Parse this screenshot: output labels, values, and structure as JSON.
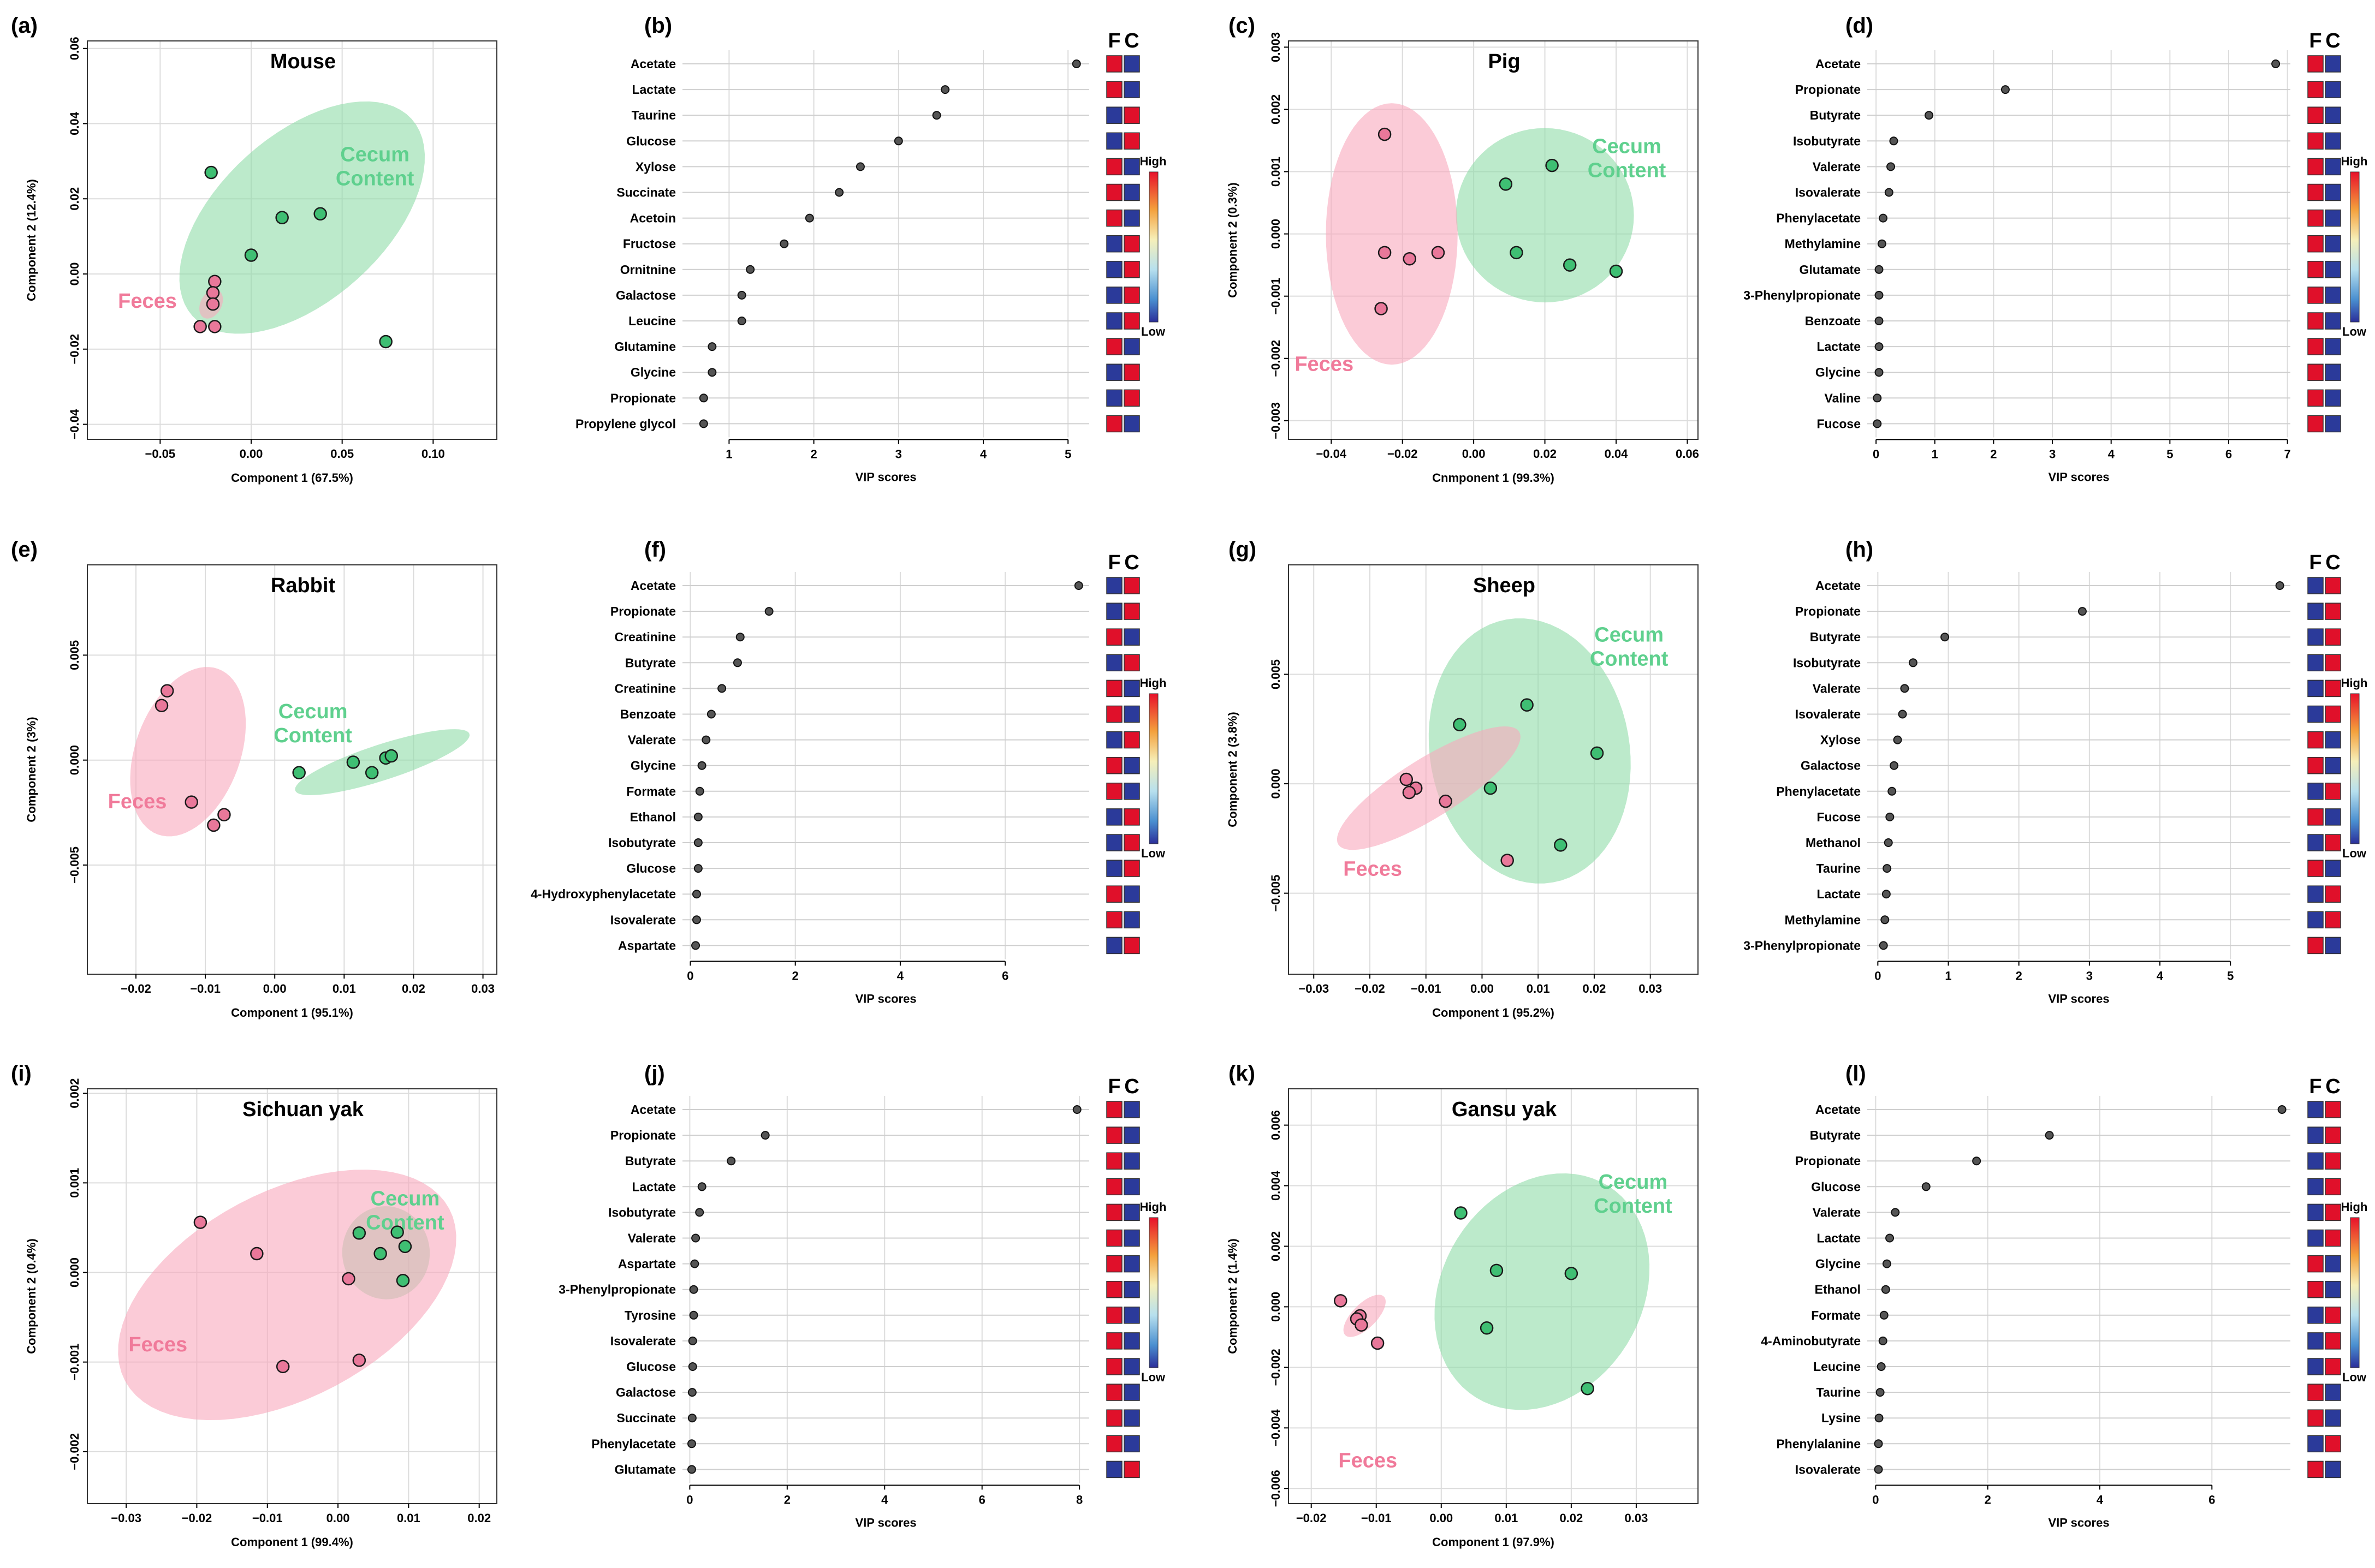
{
  "colors": {
    "cecum_fill": "#8fdca8",
    "feces_fill": "#f9a8bd",
    "cecum_point": "#3fbf73",
    "feces_point": "#e9789a",
    "high": "#e0102a",
    "low": "#2b3a9a",
    "grid": "#dcdcdc"
  },
  "chart_data": [
    {
      "panel": "(a)",
      "type": "scatter",
      "title": "Mouse",
      "xlabel": "Component 1 (67.5%)",
      "ylabel": "Component 2 (12.4%)",
      "xlim": [
        -0.09,
        0.135
      ],
      "ylim": [
        -0.044,
        0.062
      ],
      "xticks": [
        -0.05,
        0.0,
        0.05,
        0.1
      ],
      "xticklabels": [
        "−0.05",
        "0.00",
        "0.05",
        "0.10"
      ],
      "yticks": [
        -0.04,
        -0.02,
        0.0,
        0.02,
        0.04,
        0.06
      ],
      "yticklabels": [
        "−0.04",
        "−0.02",
        "0.00",
        "0.02",
        "0.04",
        "0.06"
      ],
      "cecum_label": [
        "Cecum",
        "Content"
      ],
      "feces_label": "Feces",
      "cecum_label_at": [
        0.068,
        0.03
      ],
      "feces_label_at": [
        -0.057,
        -0.009
      ],
      "ellipses": {
        "cecum": {
          "cx": 0.028,
          "cy": 0.015,
          "rx": 0.081,
          "ry": 0.022,
          "angle": -42
        },
        "feces": {
          "cx": -0.022,
          "cy": -0.008,
          "rx": 0.0085,
          "ry": 0.0028,
          "angle": -62
        }
      },
      "cecum_points": [
        [
          -0.022,
          0.027
        ],
        [
          0.0,
          0.005
        ],
        [
          0.017,
          0.015
        ],
        [
          0.038,
          0.016
        ],
        [
          0.074,
          -0.018
        ]
      ],
      "feces_points": [
        [
          -0.02,
          -0.002
        ],
        [
          -0.021,
          -0.005
        ],
        [
          -0.021,
          -0.008
        ],
        [
          -0.028,
          -0.014
        ],
        [
          -0.02,
          -0.014
        ]
      ]
    },
    {
      "panel": "(b)",
      "type": "dot",
      "xlabel": "VIP scores",
      "xlim": [
        0.45,
        5.25
      ],
      "xticks": [
        1,
        2,
        3,
        4,
        5
      ],
      "xticklabels": [
        "1",
        "2",
        "3",
        "4",
        "5"
      ],
      "categories": [
        "Acetate",
        "Lactate",
        "Taurine",
        "Glucose",
        "Xylose",
        "Succinate",
        "Acetoin",
        "Fructose",
        "Ornitnine",
        "Galactose",
        "Leucine",
        "Glutamine",
        "Glycine",
        "Propionate",
        "Propylene glycol"
      ],
      "values": [
        5.1,
        3.55,
        3.45,
        3.0,
        2.55,
        2.3,
        1.95,
        1.65,
        1.25,
        1.15,
        1.15,
        0.8,
        0.8,
        0.7,
        0.7
      ],
      "fc": [
        "HL",
        "HL",
        "LH",
        "LH",
        "HL",
        "HL",
        "HL",
        "LH",
        "LH",
        "LH",
        "LH",
        "HL",
        "LH",
        "LH",
        "HL"
      ],
      "legend": {
        "high": "High",
        "low": "Low",
        "header": [
          "F",
          "C"
        ]
      }
    },
    {
      "panel": "(c)",
      "type": "scatter",
      "title": "Pig",
      "xlabel": "Cnmponent 1 (99.3%)",
      "ylabel": "Component 2 (0.3%)",
      "xlim": [
        -0.052,
        0.063
      ],
      "ylim": [
        -0.0033,
        0.0031
      ],
      "xticks": [
        -0.04,
        -0.02,
        0.0,
        0.02,
        0.04,
        0.06
      ],
      "xticklabels": [
        "−0.04",
        "−0.02",
        "0.00",
        "0.02",
        "0.04",
        "0.06"
      ],
      "yticks": [
        -0.003,
        -0.002,
        -0.001,
        0.0,
        0.001,
        0.002,
        0.003
      ],
      "yticklabels": [
        "−0.003",
        "−0.002",
        "−0.001",
        "0.000",
        "0.001",
        "0.002",
        "0.003"
      ],
      "cecum_label": [
        "Cecum",
        "Content"
      ],
      "feces_label": "Feces",
      "cecum_label_at": [
        0.043,
        0.0013
      ],
      "feces_label_at": [
        -0.042,
        -0.0022
      ],
      "ellipses": {
        "cecum": {
          "cx": 0.02,
          "cy": 0.0003,
          "rx": 0.025,
          "ry": 0.0014,
          "angle": 5
        },
        "feces": {
          "cx": -0.023,
          "cy": 0.0,
          "rx": 0.0185,
          "ry": 0.0021,
          "angle": 0
        }
      },
      "cecum_points": [
        [
          0.009,
          0.0008
        ],
        [
          0.022,
          0.0011
        ],
        [
          0.012,
          -0.0003
        ],
        [
          0.027,
          -0.0005
        ],
        [
          0.04,
          -0.0006
        ]
      ],
      "feces_points": [
        [
          -0.025,
          0.0016
        ],
        [
          -0.025,
          -0.0003
        ],
        [
          -0.018,
          -0.0004
        ],
        [
          -0.01,
          -0.0003
        ],
        [
          -0.026,
          -0.0012
        ]
      ]
    },
    {
      "panel": "(d)",
      "type": "dot",
      "xlabel": "VIP scores",
      "xlim": [
        -0.15,
        7.05
      ],
      "xticks": [
        0,
        1,
        2,
        3,
        4,
        5,
        6,
        7
      ],
      "xticklabels": [
        "0",
        "1",
        "2",
        "3",
        "4",
        "5",
        "6",
        "7"
      ],
      "categories": [
        "Acetate",
        "Propionate",
        "Butyrate",
        "Isobutyrate",
        "Valerate",
        "Isovalerate",
        "Phenylacetate",
        "Methylamine",
        "Glutamate",
        "3-Phenylpropionate",
        "Benzoate",
        "Lactate",
        "Glycine",
        "Valine",
        "Fucose"
      ],
      "values": [
        6.8,
        2.2,
        0.9,
        0.3,
        0.25,
        0.22,
        0.12,
        0.1,
        0.05,
        0.05,
        0.05,
        0.05,
        0.05,
        0.02,
        0.02
      ],
      "fc": [
        "HL",
        "HL",
        "HL",
        "HL",
        "HL",
        "HL",
        "HL",
        "HL",
        "HL",
        "HL",
        "HL",
        "HL",
        "HL",
        "HL",
        "HL"
      ],
      "legend": {
        "high": "High",
        "low": "Low",
        "header": [
          "F",
          "C"
        ]
      }
    },
    {
      "panel": "(e)",
      "type": "scatter",
      "title": "Rabbit",
      "xlabel": "Component 1 (95.1%)",
      "ylabel": "Component 2 (3%)",
      "xlim": [
        -0.027,
        0.032
      ],
      "ylim": [
        -0.0102,
        0.0093
      ],
      "xticks": [
        -0.02,
        -0.01,
        0.0,
        0.01,
        0.02,
        0.03
      ],
      "xticklabels": [
        "−0.02",
        "−0.01",
        "0.00",
        "0.01",
        "0.02",
        "0.03"
      ],
      "yticks": [
        -0.005,
        0.0,
        0.005
      ],
      "yticklabels": [
        "−0.005",
        "0.000",
        "0.005"
      ],
      "cecum_label": [
        "Cecum",
        "Content"
      ],
      "feces_label": "Feces",
      "cecum_label_at": [
        0.0055,
        0.002
      ],
      "feces_label_at": [
        -0.0198,
        -0.0023
      ],
      "ellipses": {
        "cecum": {
          "cx": 0.0155,
          "cy": -0.0001,
          "rx": 0.0132,
          "ry": 0.00085,
          "angle": -18
        },
        "feces": {
          "cx": -0.0125,
          "cy": 0.0004,
          "rx": 0.0127,
          "ry": 0.0025,
          "angle": -70
        }
      },
      "cecum_points": [
        [
          0.0035,
          -0.0006
        ],
        [
          0.0113,
          -0.0001
        ],
        [
          0.014,
          -0.0006
        ],
        [
          0.016,
          0.0001
        ],
        [
          0.0168,
          0.0002
        ]
      ],
      "feces_points": [
        [
          -0.0155,
          0.0033
        ],
        [
          -0.0163,
          0.0026
        ],
        [
          -0.012,
          -0.002
        ],
        [
          -0.0073,
          -0.0026
        ],
        [
          -0.0088,
          -0.0031
        ]
      ]
    },
    {
      "panel": "(f)",
      "type": "dot",
      "xlabel": "VIP scores",
      "xlim": [
        -0.15,
        7.6
      ],
      "xticks": [
        0,
        2,
        4,
        6
      ],
      "xticklabels": [
        "0",
        "2",
        "4",
        "6"
      ],
      "categories": [
        "Acetate",
        "Propionate",
        "Creatinine",
        "Butyrate",
        "Creatinine",
        "Benzoate",
        "Valerate",
        "Glycine",
        "Formate",
        "Ethanol",
        "Isobutyrate",
        "Glucose",
        "4-Hydroxyphenylacetate",
        "Isovalerate",
        "Aspartate"
      ],
      "values": [
        7.4,
        1.5,
        0.95,
        0.9,
        0.6,
        0.4,
        0.3,
        0.22,
        0.18,
        0.15,
        0.15,
        0.15,
        0.12,
        0.12,
        0.1
      ],
      "fc": [
        "LH",
        "LH",
        "HL",
        "LH",
        "HL",
        "HL",
        "LH",
        "HL",
        "HL",
        "LH",
        "LH",
        "LH",
        "HL",
        "HL",
        "LH"
      ],
      "legend": {
        "high": "High",
        "low": "Low",
        "header": [
          "F",
          "C"
        ]
      }
    },
    {
      "panel": "(g)",
      "type": "scatter",
      "title": "Sheep",
      "xlabel": "Component 1 (95.2%)",
      "ylabel": "Component 2 (3.8%)",
      "xlim": [
        -0.0345,
        0.0385
      ],
      "ylim": [
        -0.0087,
        0.01
      ],
      "xticks": [
        -0.03,
        -0.02,
        -0.01,
        0.0,
        0.01,
        0.02,
        0.03
      ],
      "xticklabels": [
        "−0.03",
        "−0.02",
        "−0.01",
        "0.00",
        "0.01",
        "0.02",
        "0.03"
      ],
      "yticks": [
        -0.005,
        0.0,
        0.005
      ],
      "yticklabels": [
        "−0.005",
        "0.000",
        "0.005"
      ],
      "cecum_label": [
        "Cecum",
        "Content"
      ],
      "feces_label": "Feces",
      "cecum_label_at": [
        0.0262,
        0.0065
      ],
      "feces_label_at": [
        -0.0195,
        -0.0042
      ],
      "ellipses": {
        "cecum": {
          "cx": 0.0085,
          "cy": 0.0015,
          "rx": 0.0178,
          "ry": 0.0061,
          "angle": -10
        },
        "feces": {
          "cx": -0.0095,
          "cy": -0.0002,
          "rx": 0.019,
          "ry": 0.00135,
          "angle": -32
        }
      },
      "cecum_points": [
        [
          -0.004,
          0.0027
        ],
        [
          0.008,
          0.0036
        ],
        [
          0.0205,
          0.0014
        ],
        [
          0.0015,
          -0.0002
        ],
        [
          0.014,
          -0.0028
        ]
      ],
      "feces_points": [
        [
          -0.0135,
          0.0002
        ],
        [
          -0.0118,
          -0.0002
        ],
        [
          -0.013,
          -0.0004
        ],
        [
          -0.0065,
          -0.0008
        ],
        [
          0.0045,
          -0.0035
        ]
      ]
    },
    {
      "panel": "(h)",
      "type": "dot",
      "xlabel": "VIP scores",
      "xlim": [
        -0.15,
        5.85
      ],
      "xticks": [
        0,
        1,
        2,
        3,
        4,
        5
      ],
      "xticklabels": [
        "0",
        "1",
        "2",
        "3",
        "4",
        "5"
      ],
      "categories": [
        "Acetate",
        "Propionate",
        "Butyrate",
        "Isobutyrate",
        "Valerate",
        "Isovalerate",
        "Xylose",
        "Galactose",
        "Phenylacetate",
        "Fucose",
        "Methanol",
        "Taurine",
        "Lactate",
        "Methylamine",
        "3-Phenylpropionate"
      ],
      "values": [
        5.7,
        2.9,
        0.95,
        0.5,
        0.38,
        0.35,
        0.28,
        0.23,
        0.2,
        0.17,
        0.15,
        0.13,
        0.12,
        0.1,
        0.08
      ],
      "fc": [
        "LH",
        "LH",
        "LH",
        "LH",
        "LH",
        "LH",
        "HL",
        "HL",
        "LH",
        "HL",
        "LH",
        "HL",
        "LH",
        "LH",
        "HL"
      ],
      "legend": {
        "high": "High",
        "low": "Low",
        "header": [
          "F",
          "C"
        ]
      }
    },
    {
      "panel": "(i)",
      "type": "scatter",
      "title": "Sichuan yak",
      "xlabel": "Component 1 (99.4%)",
      "ylabel": "Component 2 (0.4%)",
      "xlim": [
        -0.0355,
        0.0225
      ],
      "ylim": [
        -0.00258,
        0.00205
      ],
      "xticks": [
        -0.03,
        -0.02,
        -0.01,
        0.0,
        0.01,
        0.02
      ],
      "xticklabels": [
        "−0.03",
        "−0.02",
        "−0.01",
        "0.00",
        "0.01",
        "0.02"
      ],
      "yticks": [
        -0.002,
        -0.001,
        0.0,
        0.001,
        0.002
      ],
      "yticklabels": [
        "−0.002",
        "−0.001",
        "0.000",
        "0.001",
        "0.002"
      ],
      "cecum_label": [
        "Cecum",
        "Content"
      ],
      "feces_label": "Feces",
      "cecum_label_at": [
        0.0095,
        0.00075
      ],
      "feces_label_at": [
        -0.0255,
        -0.00088
      ],
      "ellipses": {
        "cecum": {
          "cx": 0.0068,
          "cy": 0.00022,
          "rx": 0.0062,
          "ry": 0.00052,
          "angle": -5
        },
        "feces": {
          "cx": -0.0072,
          "cy": -0.00025,
          "rx": 0.026,
          "ry": 0.00115,
          "angle": -28
        }
      },
      "cecum_points": [
        [
          0.003,
          0.00044
        ],
        [
          0.0084,
          0.00045
        ],
        [
          0.0095,
          0.00029
        ],
        [
          0.006,
          0.00021
        ],
        [
          0.0092,
          -9e-05
        ]
      ],
      "feces_points": [
        [
          -0.0195,
          0.00056
        ],
        [
          -0.0115,
          0.00021
        ],
        [
          0.0015,
          -7e-05
        ],
        [
          -0.0078,
          -0.00105
        ],
        [
          0.003,
          -0.00098
        ]
      ]
    },
    {
      "panel": "(j)",
      "type": "dot",
      "xlabel": "VIP scores",
      "xlim": [
        -0.15,
        8.2
      ],
      "xticks": [
        0,
        2,
        4,
        6,
        8
      ],
      "xticklabels": [
        "0",
        "2",
        "4",
        "6",
        "8"
      ],
      "categories": [
        "Acetate",
        "Propionate",
        "Butyrate",
        "Lactate",
        "Isobutyrate",
        "Valerate",
        "Aspartate",
        "3-Phenylpropionate",
        "Tyrosine",
        "Isovalerate",
        "Glucose",
        "Galactose",
        "Succinate",
        "Phenylacetate",
        "Glutamate"
      ],
      "values": [
        7.95,
        1.55,
        0.85,
        0.25,
        0.2,
        0.12,
        0.1,
        0.08,
        0.08,
        0.06,
        0.06,
        0.05,
        0.05,
        0.04,
        0.04
      ],
      "fc": [
        "HL",
        "HL",
        "HL",
        "HL",
        "HL",
        "HL",
        "HL",
        "HL",
        "HL",
        "HL",
        "HL",
        "HL",
        "HL",
        "HL",
        "LH"
      ],
      "legend": {
        "high": "High",
        "low": "Low",
        "header": [
          "F",
          "C"
        ]
      }
    },
    {
      "panel": "(k)",
      "type": "scatter",
      "title": "Gansu yak",
      "xlabel": "Component 1 (97.9%)",
      "ylabel": "Component 2 (1.4%)",
      "xlim": [
        -0.0235,
        0.0395
      ],
      "ylim": [
        -0.0065,
        0.0072
      ],
      "xticks": [
        -0.02,
        -0.01,
        0.0,
        0.01,
        0.02,
        0.03
      ],
      "xticklabels": [
        "−0.02",
        "−0.01",
        "0.00",
        "0.01",
        "0.02",
        "0.03"
      ],
      "yticks": [
        -0.006,
        -0.004,
        -0.002,
        0.0,
        0.002,
        0.004,
        0.006
      ],
      "yticklabels": [
        "−0.006",
        "−0.004",
        "−0.002",
        "0.000",
        "0.002",
        "0.004",
        "0.006"
      ],
      "cecum_label": [
        "Cecum",
        "Content"
      ],
      "feces_label": "Feces",
      "cecum_label_at": [
        0.0295,
        0.0039
      ],
      "feces_label_at": [
        -0.0113,
        -0.0053
      ],
      "ellipses": {
        "cecum": {
          "cx": 0.0155,
          "cy": 0.0005,
          "rx": 0.0192,
          "ry": 0.0033,
          "angle": -58
        },
        "feces": {
          "cx": -0.0118,
          "cy": -0.0003,
          "rx": 0.0042,
          "ry": 0.0004,
          "angle": -45
        }
      },
      "cecum_points": [
        [
          0.003,
          0.0031
        ],
        [
          0.0085,
          0.0012
        ],
        [
          0.02,
          0.0011
        ],
        [
          0.007,
          -0.0007
        ],
        [
          0.0225,
          -0.0027
        ]
      ],
      "feces_points": [
        [
          -0.0155,
          0.0002
        ],
        [
          -0.0125,
          -0.0003
        ],
        [
          -0.013,
          -0.0004
        ],
        [
          -0.0123,
          -0.0006
        ],
        [
          -0.0098,
          -0.0012
        ]
      ]
    },
    {
      "panel": "(l)",
      "type": "dot",
      "xlabel": "VIP scores",
      "xlim": [
        -0.15,
        7.4
      ],
      "xticks": [
        0,
        2,
        4,
        6
      ],
      "xticklabels": [
        "0",
        "2",
        "4",
        "6"
      ],
      "categories": [
        "Acetate",
        "Butyrate",
        "Propionate",
        "Glucose",
        "Valerate",
        "Lactate",
        "Glycine",
        "Ethanol",
        "Formate",
        "4-Aminobutyrate",
        "Leucine",
        "Taurine",
        "Lysine",
        "Phenylalanine",
        "Isovalerate"
      ],
      "values": [
        7.25,
        3.1,
        1.8,
        0.9,
        0.35,
        0.25,
        0.2,
        0.18,
        0.15,
        0.13,
        0.1,
        0.08,
        0.06,
        0.05,
        0.05
      ],
      "fc": [
        "LH",
        "LH",
        "LH",
        "LH",
        "LH",
        "LH",
        "HL",
        "HL",
        "LH",
        "LH",
        "LH",
        "HL",
        "HL",
        "LH",
        "HL"
      ],
      "legend": {
        "high": "High",
        "low": "Low",
        "header": [
          "F",
          "C"
        ]
      }
    }
  ]
}
